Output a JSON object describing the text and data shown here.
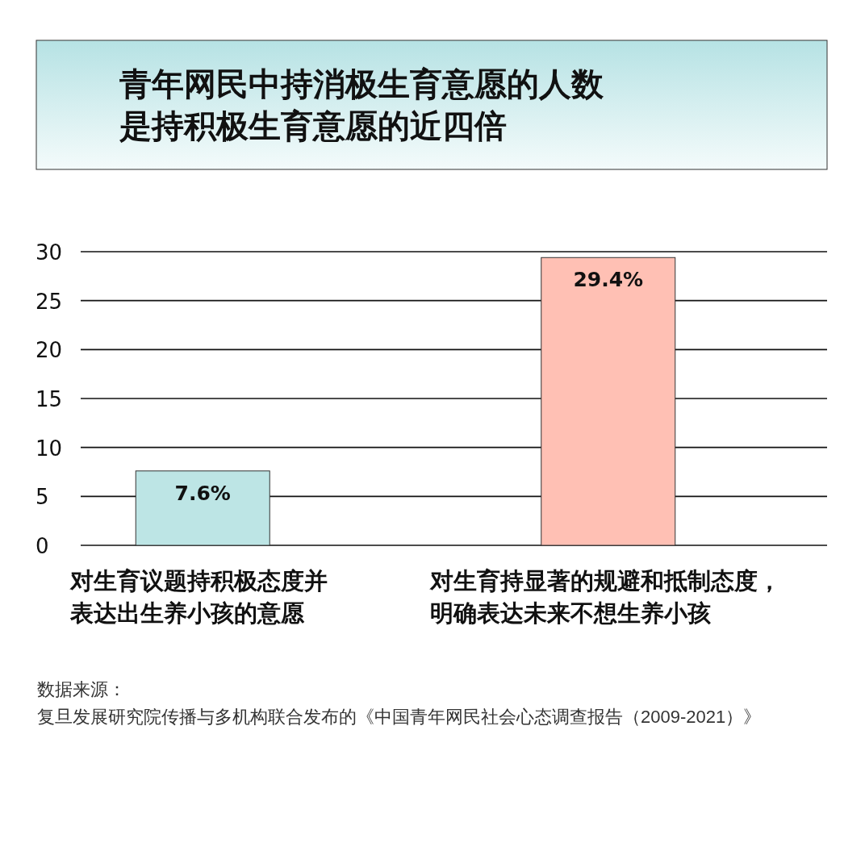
{
  "chart_data": {
    "type": "bar",
    "title": "青年网民中持消极生育意愿的人数是持积极生育意愿的近四倍",
    "categories": [
      "对生育议题持积极态度并表达出生养小孩的意愿",
      "对生育持显著的规避和抵制态度，明确表达未来不想生养小孩"
    ],
    "values": [
      7.6,
      29.4
    ],
    "colors": [
      "#bde5e5",
      "#ffc0b4"
    ],
    "value_labels": [
      "7.6%",
      "29.4%"
    ],
    "ylim": [
      0,
      30
    ],
    "yticks": [
      0,
      5,
      10,
      15,
      20,
      25,
      30
    ],
    "grid": "y",
    "annotations": [
      "数据来源：",
      "复旦发展研究院传播与多机构联合发布的《中国青年网民社会心态调查报告（2009-2021）》"
    ]
  }
}
